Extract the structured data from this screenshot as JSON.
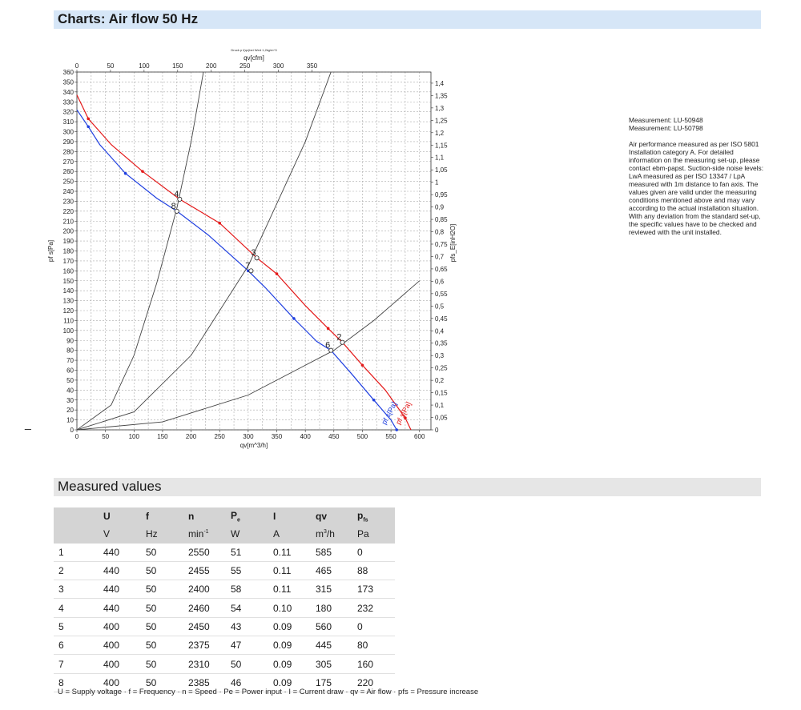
{
  "header": {
    "title": "Charts: Air flow 50 Hz"
  },
  "side_mark": "_",
  "notes": {
    "measurements": [
      "Measurement: LU-50948",
      "Measurement: LU-50798"
    ],
    "description": "Air performance measured as per ISO 5801 Installation category A. For detailed information on the measuring set-up, please contact ebm-papst. Suction-side noise levels: LwA measured as per ISO 13347 / LpA measured with 1m distance to fan axis. The values given are valid under the measuring conditions mentioned above and may vary according to the actual installation situation. With any deviation from the standard set-up, the specific values have to be checked and reviewed with the unit installed."
  },
  "colors": {
    "curve_440": "#e41a1a",
    "curve_400": "#1f3fe0",
    "system": "#444444",
    "header_bar": "#d6e6f7",
    "table_header": "#d4d4d4"
  },
  "chart_data": {
    "type": "line",
    "title": "Druck p f(qv)bei Wert 1,2kg/m^3",
    "xlabel": "qv[m^3/h]",
    "x2label": "qv[cfm]",
    "ylabel": "pf s[Pa]",
    "y2label": "pfs_E[inH2O]",
    "xlim": [
      0,
      620
    ],
    "ylim": [
      0,
      360
    ],
    "x_ticks": [
      0,
      50,
      100,
      150,
      200,
      250,
      300,
      350,
      400,
      450,
      500,
      550,
      600
    ],
    "x2_ticks": [
      0,
      50,
      100,
      150,
      200,
      250,
      300,
      350
    ],
    "y_ticks": [
      0,
      10,
      20,
      30,
      40,
      50,
      60,
      70,
      80,
      90,
      100,
      110,
      120,
      130,
      140,
      150,
      160,
      170,
      180,
      190,
      200,
      210,
      220,
      230,
      240,
      250,
      260,
      270,
      280,
      290,
      300,
      310,
      320,
      330,
      340,
      350,
      360
    ],
    "y2_ticks": [
      "0",
      "0,05",
      "0,1",
      "0,15",
      "0,2",
      "0,25",
      "0,3",
      "0,35",
      "0,4",
      "0,45",
      "0,5",
      "0,55",
      "0,6",
      "0,65",
      "0,7",
      "0,75",
      "0,8",
      "0,85",
      "0,9",
      "0,95",
      "1",
      "1,05",
      "1,1",
      "1,15",
      "1,2",
      "1,25",
      "1,3",
      "1,35",
      "1,4"
    ],
    "grid": true,
    "series": [
      {
        "name": "pf s[Pa]",
        "color": "#e41a1a",
        "x": [
          0,
          20,
          60,
          115,
          180,
          250,
          315,
          350,
          400,
          440,
          465,
          500,
          540,
          575,
          585
        ],
        "y": [
          337,
          313,
          287,
          260,
          232,
          208,
          173,
          157,
          125,
          102,
          88,
          65,
          40,
          12,
          0
        ]
      },
      {
        "name": "pf s[Pa]",
        "color": "#1f3fe0",
        "x": [
          0,
          20,
          40,
          85,
          140,
          175,
          230,
          300,
          330,
          380,
          420,
          445,
          480,
          520,
          550,
          560
        ],
        "y": [
          322,
          305,
          287,
          258,
          233,
          220,
          196,
          160,
          143,
          112,
          89,
          80,
          57,
          30,
          10,
          0
        ]
      },
      {
        "name": "",
        "color": "#444444",
        "x": [
          0,
          60,
          100,
          140,
          175,
          200,
          240,
          270
        ],
        "y": [
          0,
          25,
          75,
          148,
          223,
          290,
          420,
          530
        ]
      },
      {
        "name": "",
        "color": "#444444",
        "x": [
          0,
          100,
          200,
          300,
          400,
          450,
          480
        ],
        "y": [
          0,
          18,
          75,
          165,
          290,
          368,
          420
        ]
      },
      {
        "name": "",
        "color": "#444444",
        "x": [
          0,
          150,
          300,
          450,
          520,
          600
        ],
        "y": [
          0,
          8,
          35,
          80,
          110,
          150
        ]
      }
    ],
    "points": [
      {
        "label": "2",
        "x": 465,
        "y": 88
      },
      {
        "label": "3",
        "x": 315,
        "y": 173
      },
      {
        "label": "4",
        "x": 180,
        "y": 232
      },
      {
        "label": "6",
        "x": 445,
        "y": 80
      },
      {
        "label": "7",
        "x": 305,
        "y": 160
      },
      {
        "label": "8",
        "x": 175,
        "y": 220
      }
    ]
  },
  "measured": {
    "title": "Measured values",
    "headers": [
      "",
      "U",
      "f",
      "n",
      "Pe",
      "I",
      "qv",
      "pfs"
    ],
    "units": [
      "",
      "V",
      "Hz",
      "min-1",
      "W",
      "A",
      "m3/h",
      "Pa"
    ],
    "rows": [
      [
        "1",
        "440",
        "50",
        "2550",
        "51",
        "0.11",
        "585",
        "0"
      ],
      [
        "2",
        "440",
        "50",
        "2455",
        "55",
        "0.11",
        "465",
        "88"
      ],
      [
        "3",
        "440",
        "50",
        "2400",
        "58",
        "0.11",
        "315",
        "173"
      ],
      [
        "4",
        "440",
        "50",
        "2460",
        "54",
        "0.10",
        "180",
        "232"
      ],
      [
        "5",
        "400",
        "50",
        "2450",
        "43",
        "0.09",
        "560",
        "0"
      ],
      [
        "6",
        "400",
        "50",
        "2375",
        "47",
        "0.09",
        "445",
        "80"
      ],
      [
        "7",
        "400",
        "50",
        "2310",
        "50",
        "0.09",
        "305",
        "160"
      ],
      [
        "8",
        "400",
        "50",
        "2385",
        "46",
        "0.09",
        "175",
        "220"
      ]
    ],
    "legend": "U = Supply voltage · f = Frequency · n = Speed · Pe = Power input · I = Current draw · qv = Air flow · pfs = Pressure increase"
  }
}
